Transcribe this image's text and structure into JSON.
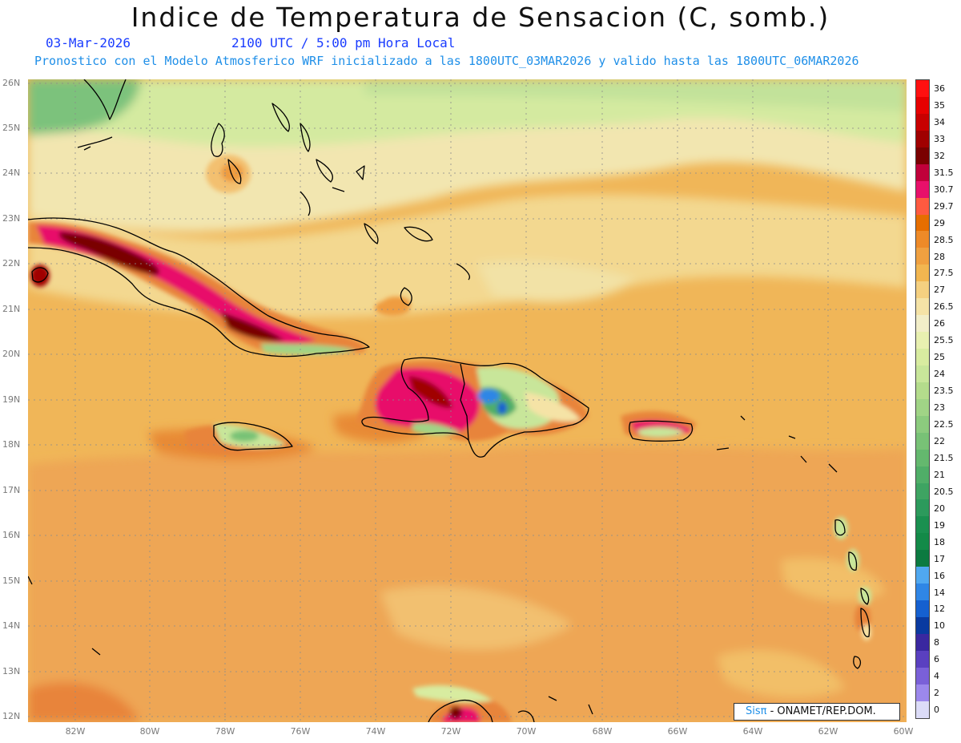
{
  "title": "Indice de Temperatura de Sensacion (C, somb.)",
  "date": "03-Mar-2026",
  "time": "2100 UTC / 5:00 pm Hora Local",
  "description": "Pronostico con el Modelo Atmosferico WRF inicializado a las 1800UTC_03MAR2026 y valido hasta las  1800UTC_06MAR2026",
  "lat_labels": [
    "26N",
    "25N",
    "24N",
    "23N",
    "22N",
    "21N",
    "20N",
    "19N",
    "18N",
    "17N",
    "16N",
    "15N",
    "14N",
    "13N",
    "12N"
  ],
  "lon_labels": [
    "82W",
    "80W",
    "78W",
    "76W",
    "74W",
    "72W",
    "70W",
    "68W",
    "66W",
    "64W",
    "62W",
    "60W"
  ],
  "colorbar": {
    "levels": [
      "36",
      "35",
      "34",
      "33",
      "32",
      "31.5",
      "30.7",
      "29.7",
      "29",
      "28.5",
      "28",
      "27.5",
      "27",
      "26.5",
      "26",
      "25.5",
      "25",
      "24",
      "23.5",
      "23",
      "22.5",
      "22",
      "21.5",
      "21",
      "20.5",
      "20",
      "19",
      "18",
      "17",
      "16",
      "14",
      "12",
      "10",
      "8",
      "6",
      "4",
      "2",
      "0"
    ],
    "colors": [
      "#ff1010",
      "#e60000",
      "#c80000",
      "#a00000",
      "#7a0000",
      "#c0003a",
      "#e8106a",
      "#ff5a40",
      "#e66e00",
      "#ee8a28",
      "#f0a040",
      "#f2b650",
      "#f5d080",
      "#f5e3a6",
      "#f2eec8",
      "#e8f0b0",
      "#d8eca0",
      "#c8e69a",
      "#b4dc8c",
      "#a0d486",
      "#8ccb7e",
      "#78c276",
      "#64b86e",
      "#50ae68",
      "#3ea462",
      "#2c9a5c",
      "#1a9050",
      "#138a48",
      "#0c7a40",
      "#50a8f0",
      "#2f86e6",
      "#1560d0",
      "#0a3aa0",
      "#3a28a0",
      "#5a40c0",
      "#7a60d8",
      "#9c88ec",
      "#dcdcf8"
    ]
  },
  "logo": {
    "brand": "Sisπ",
    "org": " - ONAMET/REP.DOM."
  }
}
